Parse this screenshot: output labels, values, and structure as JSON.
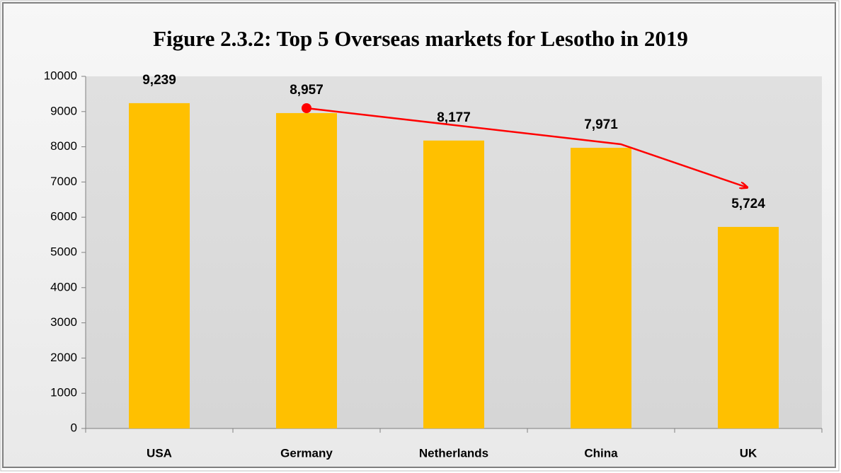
{
  "chart_data": {
    "type": "bar",
    "title": "Figure 2.3.2: Top 5 Overseas markets for Lesotho in 2019",
    "categories": [
      "USA",
      "Germany",
      "Netherlands",
      "China",
      "UK"
    ],
    "values": [
      9239,
      8957,
      8177,
      7971,
      5724
    ],
    "value_labels": [
      "9,239",
      "8,957",
      "8,177",
      "7,971",
      "5,724"
    ],
    "color": "#ffc000",
    "ylim": [
      0,
      10000
    ],
    "yticks": [
      0,
      1000,
      2000,
      3000,
      4000,
      5000,
      6000,
      7000,
      8000,
      9000,
      10000
    ],
    "grid": false
  }
}
